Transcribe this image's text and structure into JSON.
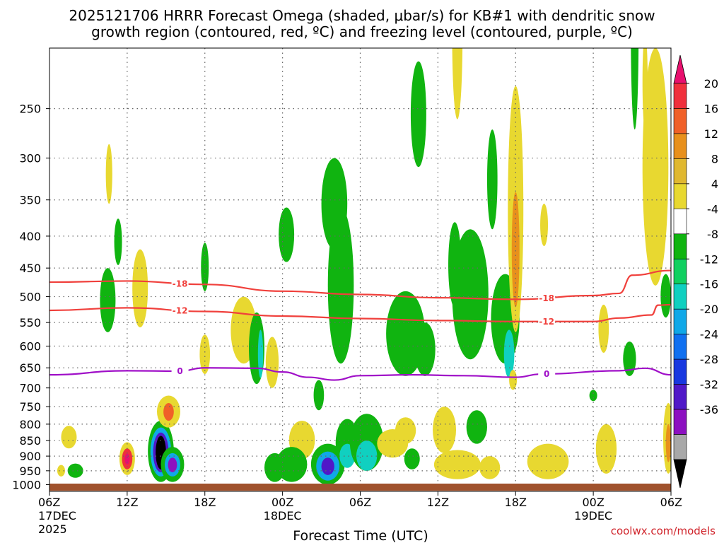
{
  "chart_data": {
    "type": "heatmap",
    "title_line1": "2025121706 HRRR Forecast Omega (shaded, μbar/s) for KB#1 with dendritic snow",
    "title_line2": "growth region (contoured, red, ºC) and freezing level (contoured, purple, ºC)",
    "xlabel": "Forecast Time (UTC)",
    "credit": "coolwx.com/models",
    "x_ticks": [
      {
        "hours": 0,
        "label": "06Z",
        "sub": "17DEC",
        "sub2": "2025"
      },
      {
        "hours": 6,
        "label": "12Z"
      },
      {
        "hours": 12,
        "label": "18Z"
      },
      {
        "hours": 18,
        "label": "00Z",
        "sub": "18DEC"
      },
      {
        "hours": 24,
        "label": "06Z"
      },
      {
        "hours": 30,
        "label": "12Z"
      },
      {
        "hours": 36,
        "label": "18Z"
      },
      {
        "hours": 42,
        "label": "00Z",
        "sub": "19DEC"
      },
      {
        "hours": 48,
        "label": "06Z"
      }
    ],
    "xlim_hours": [
      0,
      48
    ],
    "y_ticks": [
      250,
      300,
      350,
      400,
      450,
      500,
      550,
      600,
      650,
      700,
      750,
      800,
      850,
      900,
      950,
      1000
    ],
    "ylim_hpa": [
      200,
      1025
    ],
    "grid": true,
    "colorbar": {
      "labels": [
        "20",
        "16",
        "12",
        "8",
        "4",
        "-4",
        "-8",
        "-12",
        "-16",
        "-20",
        "-24",
        "-28",
        "-32",
        "-36"
      ],
      "colors": [
        "#e8106e",
        "#f0303c",
        "#f06028",
        "#e8901c",
        "#e0b830",
        "#e8d830",
        "#ffffff",
        "#10b410",
        "#10d060",
        "#10d0c0",
        "#10a8e8",
        "#1070f0",
        "#1838e0",
        "#5018c8",
        "#8c10c0",
        "#a8a8a8",
        "#000000"
      ]
    },
    "contours": [
      {
        "label": "-18",
        "color": "#f0403c",
        "points": [
          [
            0,
            474
          ],
          [
            6,
            472
          ],
          [
            12,
            478
          ],
          [
            18,
            490
          ],
          [
            24,
            496
          ],
          [
            30,
            502
          ],
          [
            36,
            505
          ],
          [
            42,
            498
          ],
          [
            44,
            494
          ],
          [
            45,
            462
          ],
          [
            48,
            454
          ]
        ]
      },
      {
        "label": "-12",
        "color": "#f0403c",
        "points": [
          [
            0,
            526
          ],
          [
            6,
            521
          ],
          [
            12,
            528
          ],
          [
            18,
            537
          ],
          [
            24,
            542
          ],
          [
            30,
            546
          ],
          [
            36,
            548
          ],
          [
            42,
            548
          ],
          [
            44,
            541
          ],
          [
            46.5,
            535
          ],
          [
            47,
            516
          ],
          [
            48,
            515
          ]
        ]
      },
      {
        "label": "0",
        "color": "#a010c8",
        "points": [
          [
            0,
            667
          ],
          [
            6,
            657
          ],
          [
            10,
            658
          ],
          [
            12,
            650
          ],
          [
            16,
            651
          ],
          [
            18,
            660
          ],
          [
            20,
            673
          ],
          [
            22,
            680
          ],
          [
            24,
            669
          ],
          [
            28,
            667
          ],
          [
            32,
            669
          ],
          [
            36,
            673
          ],
          [
            38,
            665
          ],
          [
            44,
            657
          ],
          [
            46,
            651
          ],
          [
            48,
            667
          ]
        ]
      }
    ],
    "blobs": [
      {
        "cx": 6.0,
        "cy": 910,
        "rx": 0.6,
        "ry": 55,
        "color": "#e8d830"
      },
      {
        "cx": 6.0,
        "cy": 910,
        "rx": 0.4,
        "ry": 35,
        "color": "#f0303c"
      },
      {
        "cx": 6.0,
        "cy": 910,
        "rx": 0.2,
        "ry": 18,
        "color": "#e8106e"
      },
      {
        "cx": 8.6,
        "cy": 890,
        "rx": 1.0,
        "ry": 100,
        "color": "#10b410"
      },
      {
        "cx": 8.6,
        "cy": 890,
        "rx": 0.8,
        "ry": 80,
        "color": "#10a8e8"
      },
      {
        "cx": 8.6,
        "cy": 890,
        "rx": 0.6,
        "ry": 65,
        "color": "#5018c8"
      },
      {
        "cx": 8.6,
        "cy": 890,
        "rx": 0.4,
        "ry": 55,
        "color": "#000000"
      },
      {
        "cx": 9.5,
        "cy": 930,
        "rx": 0.9,
        "ry": 60,
        "color": "#10b410"
      },
      {
        "cx": 9.5,
        "cy": 930,
        "rx": 0.6,
        "ry": 40,
        "color": "#10a8e8"
      },
      {
        "cx": 9.5,
        "cy": 930,
        "rx": 0.35,
        "ry": 25,
        "color": "#8c10c0"
      },
      {
        "cx": 9.2,
        "cy": 765,
        "rx": 0.9,
        "ry": 45,
        "color": "#e8d830"
      },
      {
        "cx": 9.2,
        "cy": 765,
        "rx": 0.4,
        "ry": 25,
        "color": "#f06028"
      },
      {
        "cx": 2.0,
        "cy": 950,
        "rx": 0.6,
        "ry": 25,
        "color": "#10b410"
      },
      {
        "cx": 1.5,
        "cy": 840,
        "rx": 0.6,
        "ry": 35,
        "color": "#e8d830"
      },
      {
        "cx": 0.9,
        "cy": 950,
        "rx": 0.3,
        "ry": 20,
        "color": "#e8d830"
      },
      {
        "cx": 4.5,
        "cy": 510,
        "rx": 0.6,
        "ry": 60,
        "color": "#10b410"
      },
      {
        "cx": 5.3,
        "cy": 410,
        "rx": 0.3,
        "ry": 35,
        "color": "#10b410"
      },
      {
        "cx": 7.0,
        "cy": 490,
        "rx": 0.6,
        "ry": 70,
        "color": "#e8d830"
      },
      {
        "cx": 4.6,
        "cy": 320,
        "rx": 0.25,
        "ry": 35,
        "color": "#e8d830"
      },
      {
        "cx": 12.0,
        "cy": 450,
        "rx": 0.3,
        "ry": 40,
        "color": "#10b410"
      },
      {
        "cx": 12.0,
        "cy": 620,
        "rx": 0.4,
        "ry": 45,
        "color": "#e8d830"
      },
      {
        "cx": 15.0,
        "cy": 570,
        "rx": 1.0,
        "ry": 70,
        "color": "#e8d830"
      },
      {
        "cx": 16.0,
        "cy": 610,
        "rx": 0.6,
        "ry": 80,
        "color": "#10b410"
      },
      {
        "cx": 16.3,
        "cy": 620,
        "rx": 0.2,
        "ry": 55,
        "color": "#10d0c0"
      },
      {
        "cx": 17.2,
        "cy": 640,
        "rx": 0.5,
        "ry": 60,
        "color": "#e8d830"
      },
      {
        "cx": 19.5,
        "cy": 850,
        "rx": 1.0,
        "ry": 60,
        "color": "#e8d830"
      },
      {
        "cx": 18.3,
        "cy": 400,
        "rx": 0.6,
        "ry": 40,
        "color": "#10b410"
      },
      {
        "cx": 18.7,
        "cy": 930,
        "rx": 1.2,
        "ry": 60,
        "color": "#10b410"
      },
      {
        "cx": 17.4,
        "cy": 940,
        "rx": 0.8,
        "ry": 50,
        "color": "#10b410"
      },
      {
        "cx": 21.5,
        "cy": 930,
        "rx": 1.3,
        "ry": 70,
        "color": "#10b410"
      },
      {
        "cx": 21.5,
        "cy": 935,
        "rx": 0.9,
        "ry": 50,
        "color": "#10a8e8"
      },
      {
        "cx": 21.5,
        "cy": 935,
        "rx": 0.5,
        "ry": 30,
        "color": "#5018c8"
      },
      {
        "cx": 23.0,
        "cy": 860,
        "rx": 0.9,
        "ry": 75,
        "color": "#10b410"
      },
      {
        "cx": 23.0,
        "cy": 900,
        "rx": 0.6,
        "ry": 40,
        "color": "#10d0c0"
      },
      {
        "cx": 24.5,
        "cy": 860,
        "rx": 1.3,
        "ry": 90,
        "color": "#10b410"
      },
      {
        "cx": 24.5,
        "cy": 900,
        "rx": 0.8,
        "ry": 50,
        "color": "#10d0c0"
      },
      {
        "cx": 20.8,
        "cy": 720,
        "rx": 0.4,
        "ry": 40,
        "color": "#10b410"
      },
      {
        "cx": 22.5,
        "cy": 500,
        "rx": 1.0,
        "ry": 140,
        "color": "#10b410"
      },
      {
        "cx": 22.0,
        "cy": 360,
        "rx": 1.0,
        "ry": 60,
        "color": "#10b410"
      },
      {
        "cx": 26.5,
        "cy": 860,
        "rx": 1.2,
        "ry": 45,
        "color": "#e8d830"
      },
      {
        "cx": 27.5,
        "cy": 580,
        "rx": 1.5,
        "ry": 90,
        "color": "#10b410"
      },
      {
        "cx": 27.5,
        "cy": 820,
        "rx": 0.8,
        "ry": 40,
        "color": "#e8d830"
      },
      {
        "cx": 29.0,
        "cy": 610,
        "rx": 0.8,
        "ry": 60,
        "color": "#10b410"
      },
      {
        "cx": 28.5,
        "cy": 260,
        "rx": 0.6,
        "ry": 50,
        "color": "#10b410"
      },
      {
        "cx": 28.0,
        "cy": 910,
        "rx": 0.6,
        "ry": 35,
        "color": "#10b410"
      },
      {
        "cx": 30.5,
        "cy": 820,
        "rx": 0.9,
        "ry": 70,
        "color": "#e8d830"
      },
      {
        "cx": 31.5,
        "cy": 930,
        "rx": 1.8,
        "ry": 50,
        "color": "#e8d830"
      },
      {
        "cx": 31.3,
        "cy": 450,
        "rx": 0.5,
        "ry": 70,
        "color": "#10b410"
      },
      {
        "cx": 31.5,
        "cy": 200,
        "rx": 0.4,
        "ry": 60,
        "color": "#e8d830"
      },
      {
        "cx": 32.5,
        "cy": 510,
        "rx": 1.4,
        "ry": 120,
        "color": "#10b410"
      },
      {
        "cx": 33.0,
        "cy": 810,
        "rx": 0.8,
        "ry": 50,
        "color": "#10b410"
      },
      {
        "cx": 34.0,
        "cy": 940,
        "rx": 0.8,
        "ry": 40,
        "color": "#e8d830"
      },
      {
        "cx": 35.2,
        "cy": 550,
        "rx": 1.1,
        "ry": 90,
        "color": "#10b410"
      },
      {
        "cx": 35.5,
        "cy": 620,
        "rx": 0.4,
        "ry": 55,
        "color": "#10d0c0"
      },
      {
        "cx": 34.2,
        "cy": 330,
        "rx": 0.4,
        "ry": 60,
        "color": "#10b410"
      },
      {
        "cx": 36.0,
        "cy": 400,
        "rx": 0.6,
        "ry": 170,
        "color": "#e8d830"
      },
      {
        "cx": 36.0,
        "cy": 430,
        "rx": 0.3,
        "ry": 90,
        "color": "#e8901c"
      },
      {
        "cx": 35.8,
        "cy": 680,
        "rx": 0.3,
        "ry": 25,
        "color": "#e8d830"
      },
      {
        "cx": 38.5,
        "cy": 920,
        "rx": 1.6,
        "ry": 60,
        "color": "#e8d830"
      },
      {
        "cx": 38.2,
        "cy": 385,
        "rx": 0.3,
        "ry": 30,
        "color": "#e8d830"
      },
      {
        "cx": 43.0,
        "cy": 880,
        "rx": 0.8,
        "ry": 80,
        "color": "#e8d830"
      },
      {
        "cx": 42.8,
        "cy": 565,
        "rx": 0.4,
        "ry": 50,
        "color": "#e8d830"
      },
      {
        "cx": 42.0,
        "cy": 720,
        "rx": 0.3,
        "ry": 15,
        "color": "#10b410"
      },
      {
        "cx": 44.8,
        "cy": 630,
        "rx": 0.5,
        "ry": 40,
        "color": "#10b410"
      },
      {
        "cx": 45.2,
        "cy": 200,
        "rx": 0.3,
        "ry": 70,
        "color": "#10b410"
      },
      {
        "cx": 46.0,
        "cy": 230,
        "rx": 0.2,
        "ry": 40,
        "color": "#e8d830"
      },
      {
        "cx": 46.8,
        "cy": 340,
        "rx": 1.0,
        "ry": 140,
        "color": "#e8d830"
      },
      {
        "cx": 47.6,
        "cy": 500,
        "rx": 0.4,
        "ry": 40,
        "color": "#10b410"
      },
      {
        "cx": 47.8,
        "cy": 850,
        "rx": 0.4,
        "ry": 110,
        "color": "#e8d830"
      },
      {
        "cx": 47.8,
        "cy": 860,
        "rx": 0.2,
        "ry": 60,
        "color": "#e8901c"
      }
    ]
  }
}
